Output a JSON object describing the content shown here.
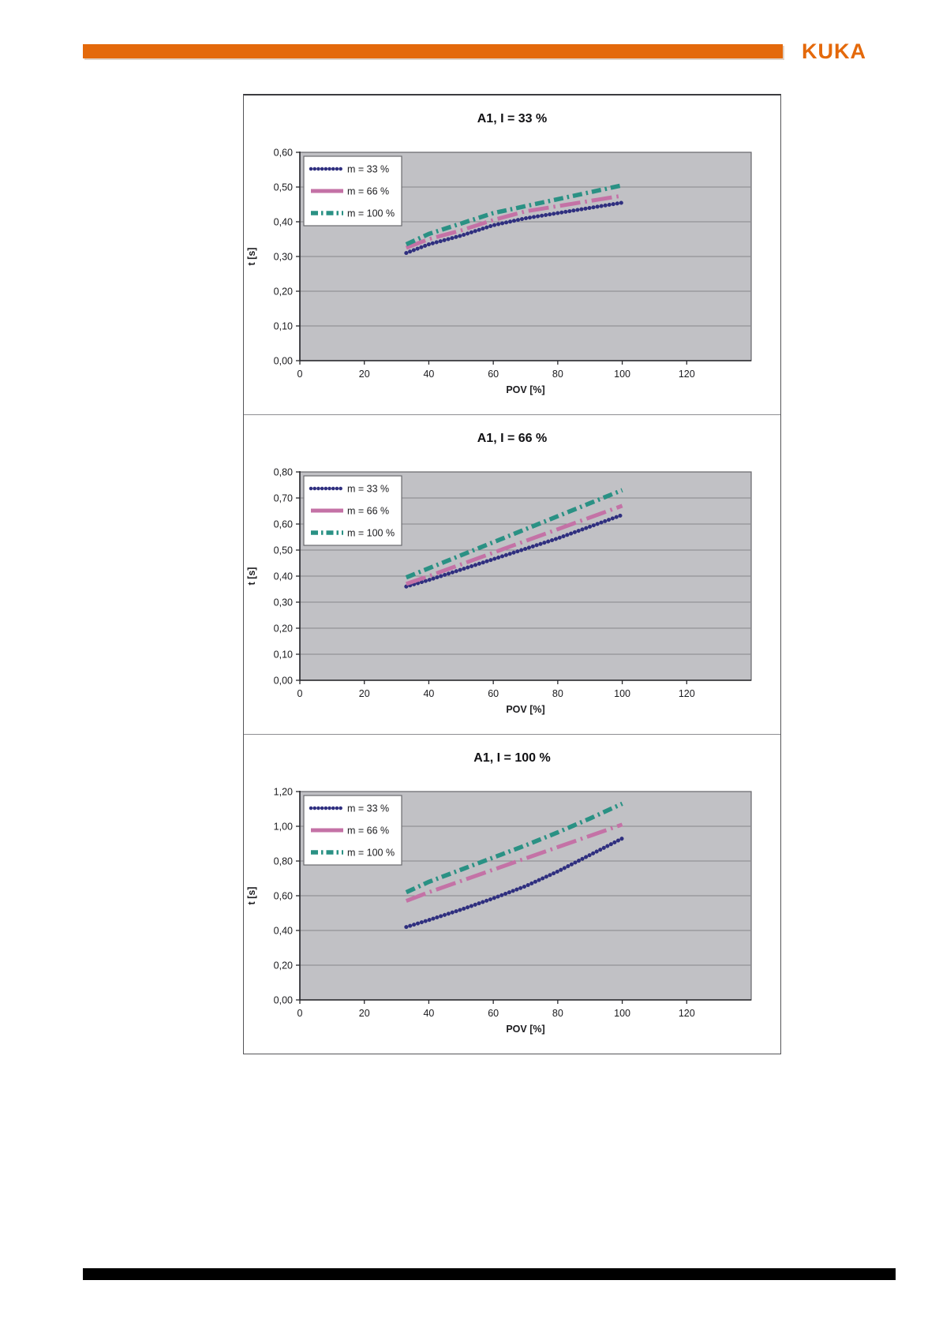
{
  "header": {
    "logo_text": "KUKA",
    "bar_color": "#e4690b",
    "logo_color": "#e4690b"
  },
  "footer": {
    "bar_color": "#000000"
  },
  "colors": {
    "plot_bg": "#c1c1c5",
    "plot_border": "#6e6e72",
    "grid": "#88888c",
    "axis": "#28282c",
    "legend_bg": "#ffffff",
    "legend_border": "#6a6a6e",
    "series_m33": "#2f2f7f",
    "series_m66": "#c472a6",
    "series_m100": "#2a9184"
  },
  "chart_data": [
    {
      "type": "line",
      "title": "A1, I = 33 %",
      "xlabel": "POV [%]",
      "ylabel": "t [s]",
      "xlim": [
        0,
        140
      ],
      "ylim": [
        0,
        0.6
      ],
      "xticks": [
        0,
        20,
        40,
        60,
        80,
        100,
        120
      ],
      "yticks": [
        0,
        0.1,
        0.2,
        0.3,
        0.4,
        0.5,
        0.6
      ],
      "ytick_labels": [
        "0,00",
        "0,10",
        "0,20",
        "0,30",
        "0,40",
        "0,50",
        "0,60"
      ],
      "grid": "horizontal",
      "legend_position": "top-left",
      "x": [
        33,
        40,
        50,
        60,
        70,
        80,
        90,
        100
      ],
      "series": [
        {
          "name": "m = 33 %",
          "color": "#2f2f7f",
          "style": "beaded",
          "values": [
            0.31,
            0.335,
            0.36,
            0.39,
            0.41,
            0.425,
            0.44,
            0.455
          ]
        },
        {
          "name": "m = 66 %",
          "color": "#c472a6",
          "style": "long-dash-dot",
          "values": [
            0.325,
            0.35,
            0.375,
            0.405,
            0.43,
            0.445,
            0.46,
            0.475
          ]
        },
        {
          "name": "m = 100 %",
          "color": "#2a9184",
          "style": "dash-dot",
          "values": [
            0.335,
            0.365,
            0.395,
            0.425,
            0.445,
            0.465,
            0.485,
            0.505
          ]
        }
      ]
    },
    {
      "type": "line",
      "title": "A1, I = 66 %",
      "xlabel": "POV [%]",
      "ylabel": "t [s]",
      "xlim": [
        0,
        140
      ],
      "ylim": [
        0,
        0.8
      ],
      "xticks": [
        0,
        20,
        40,
        60,
        80,
        100,
        120
      ],
      "yticks": [
        0,
        0.1,
        0.2,
        0.3,
        0.4,
        0.5,
        0.6,
        0.7,
        0.8
      ],
      "ytick_labels": [
        "0,00",
        "0,10",
        "0,20",
        "0,30",
        "0,40",
        "0,50",
        "0,60",
        "0,70",
        "0,80"
      ],
      "grid": "horizontal",
      "legend_position": "top-left",
      "x": [
        33,
        40,
        50,
        60,
        70,
        80,
        90,
        100
      ],
      "series": [
        {
          "name": "m = 33 %",
          "color": "#2f2f7f",
          "style": "beaded",
          "values": [
            0.36,
            0.385,
            0.425,
            0.465,
            0.505,
            0.545,
            0.59,
            0.635
          ]
        },
        {
          "name": "m = 66 %",
          "color": "#c472a6",
          "style": "long-dash-dot",
          "values": [
            0.37,
            0.4,
            0.445,
            0.49,
            0.535,
            0.58,
            0.625,
            0.67
          ]
        },
        {
          "name": "m = 100 %",
          "color": "#2a9184",
          "style": "dash-dot",
          "values": [
            0.395,
            0.43,
            0.48,
            0.53,
            0.58,
            0.63,
            0.68,
            0.73
          ]
        }
      ]
    },
    {
      "type": "line",
      "title": "A1, I = 100 %",
      "xlabel": "POV [%]",
      "ylabel": "t [s]",
      "xlim": [
        0,
        140
      ],
      "ylim": [
        0,
        1.2
      ],
      "xticks": [
        0,
        20,
        40,
        60,
        80,
        100,
        120
      ],
      "yticks": [
        0,
        0.2,
        0.4,
        0.6,
        0.8,
        1.0,
        1.2
      ],
      "ytick_labels": [
        "0,00",
        "0,20",
        "0,40",
        "0,60",
        "0,80",
        "1,00",
        "1,20"
      ],
      "grid": "horizontal",
      "legend_position": "top-left",
      "x": [
        33,
        40,
        50,
        60,
        70,
        80,
        90,
        100
      ],
      "series": [
        {
          "name": "m = 33 %",
          "color": "#2f2f7f",
          "style": "beaded",
          "values": [
            0.42,
            0.46,
            0.52,
            0.585,
            0.655,
            0.74,
            0.835,
            0.93
          ]
        },
        {
          "name": "m = 66 %",
          "color": "#c472a6",
          "style": "long-dash-dot",
          "values": [
            0.57,
            0.62,
            0.685,
            0.75,
            0.815,
            0.88,
            0.945,
            1.01
          ]
        },
        {
          "name": "m = 100 %",
          "color": "#2a9184",
          "style": "dash-dot",
          "values": [
            0.62,
            0.68,
            0.75,
            0.82,
            0.89,
            0.965,
            1.045,
            1.13
          ]
        }
      ]
    }
  ]
}
